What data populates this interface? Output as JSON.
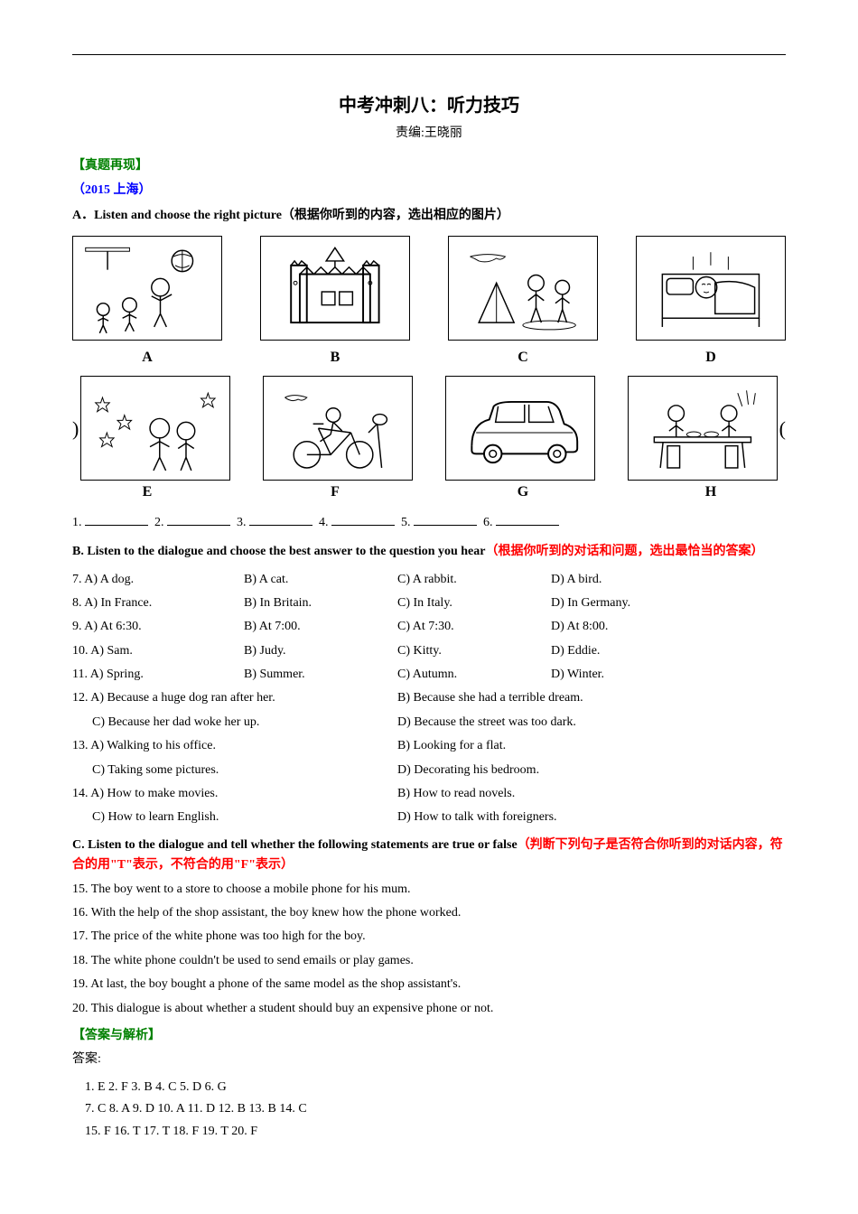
{
  "header_line_color": "#000000",
  "title": "中考冲刺八：听力技巧",
  "subtitle": "责编:王晓丽",
  "section_real": "【真题再现】",
  "year_location": "（2015 上海）",
  "section_a": {
    "label": "A．Listen and choose the right picture",
    "cn": "（根据你听到的内容，选出相应的图片）"
  },
  "images": {
    "row1": [
      "A",
      "B",
      "C",
      "D"
    ],
    "row2": [
      "E",
      "F",
      "G",
      "H"
    ]
  },
  "image_alts": {
    "A": "children basketball",
    "B": "castle amusement",
    "C": "picnic tent",
    "D": "sleeping",
    "E": "stars night",
    "F": "cycling",
    "G": "car",
    "H": "dining table"
  },
  "blanks_prefix": [
    "1.",
    "2.",
    "3.",
    "4.",
    "5.",
    "6."
  ],
  "section_b": {
    "label": "B. Listen to the dialogue and choose the best answer to the question you hear",
    "cn": "（根据你听到的对话和问题，选出最恰当的答案）"
  },
  "questions_b": [
    {
      "num": "7.",
      "a": "A) A dog.",
      "b": "B) A cat.",
      "c": "C) A rabbit.",
      "d": "D) A bird."
    },
    {
      "num": "8.",
      "a": "A) In France.",
      "b": "B) In Britain.",
      "c": "C) In Italy.",
      "d": "D) In Germany."
    },
    {
      "num": "9.",
      "a": "A) At 6:30.",
      "b": "B) At 7:00.",
      "c": "C) At 7:30.",
      "d": "D) At 8:00."
    },
    {
      "num": "10.",
      "a": "A) Sam.",
      "b": "B) Judy.",
      "c": "C) Kitty.",
      "d": "D) Eddie."
    },
    {
      "num": "11.",
      "a": "A) Spring.",
      "b": "B) Summer.",
      "c": "C) Autumn.",
      "d": "D) Winter."
    }
  ],
  "questions_b_twocol": [
    {
      "num": "12.",
      "a": "A) Because a huge dog ran after her.",
      "b": "B) Because she had a terrible dream.",
      "c": "C) Because her dad woke her up.",
      "d": "D) Because the street was too dark."
    },
    {
      "num": "13.",
      "a": "A) Walking to his office.",
      "b": "B) Looking for a flat.",
      "c": "C) Taking some pictures.",
      "d": "D) Decorating his bedroom."
    },
    {
      "num": "14.",
      "a": "A) How to make movies.",
      "b": "B) How to read novels.",
      "c": "C) How to learn English.",
      "d": "D) How to talk with foreigners."
    }
  ],
  "section_c": {
    "label": "C. Listen to the dialogue and tell whether the following statements are true or false",
    "cn1": "（判断下列句子是否符合你听到的对话内容，符合的用\"",
    "t": "T",
    "cn2": "\"表示，不符合的用\"",
    "f": "F",
    "cn3": "\"表示）"
  },
  "statements_c": [
    "15. The boy went to a store to choose a mobile phone for his mum.",
    "16. With the help of the shop assistant, the boy knew how the phone worked.",
    "17. The price of the white phone was too high for the boy.",
    "18. The white phone couldn't be used to send emails or play games.",
    "19. At last, the boy bought a phone of the same model as the shop assistant's.",
    "20. This dialogue is about whether a student should buy an expensive phone or not."
  ],
  "answer_header": "【答案与解析】",
  "answer_label": "答案:",
  "answers": [
    "1. E  2. F  3. B  4. C  5. D  6. G",
    "7. C  8. A  9. D  10. A  11. D  12. B  13. B  14. C",
    "15. F  16. T  17. T  18. F  19. T  20. F"
  ],
  "colors": {
    "green": "#008000",
    "blue": "#0000ff",
    "red": "#ff0000",
    "black": "#000000"
  }
}
